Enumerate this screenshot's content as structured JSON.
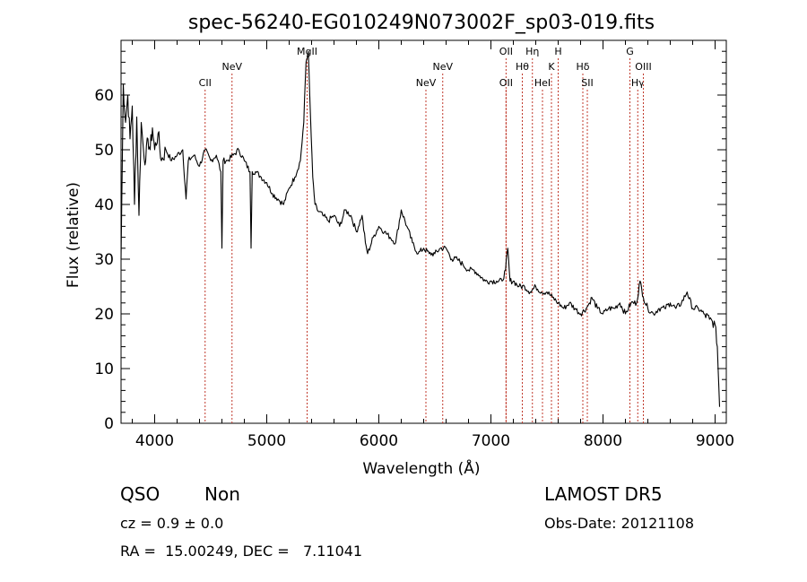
{
  "chart_data": {
    "type": "line",
    "title": "spec-56240-EG010249N073002F_sp03-019.fits",
    "xlabel": "Wavelength (Å)",
    "ylabel": "Flux (relative)",
    "xlim": [
      3700,
      9100
    ],
    "ylim": [
      0,
      70
    ],
    "x_ticks": [
      4000,
      5000,
      6000,
      7000,
      8000,
      9000
    ],
    "y_ticks": [
      0,
      10,
      20,
      30,
      40,
      50,
      60
    ],
    "grid": false,
    "series": [
      {
        "x": [
          3700,
          3720,
          3740,
          3760,
          3780,
          3800,
          3820,
          3840,
          3860,
          3880,
          3900,
          3920,
          3940,
          3960,
          3980,
          4000,
          4030,
          4060,
          4100,
          4150,
          4200,
          4250,
          4280,
          4300,
          4350,
          4400,
          4450,
          4500,
          4550,
          4590,
          4600,
          4610,
          4650,
          4700,
          4750,
          4800,
          4850,
          4860,
          4870,
          4900,
          4950,
          5000,
          5050,
          5100,
          5150,
          5200,
          5250,
          5300,
          5330,
          5350,
          5370,
          5390,
          5410,
          5430,
          5450,
          5500,
          5550,
          5600,
          5650,
          5700,
          5750,
          5800,
          5850,
          5880,
          5900,
          5950,
          6000,
          6050,
          6100,
          6150,
          6200,
          6250,
          6300,
          6350,
          6400,
          6450,
          6500,
          6550,
          6600,
          6650,
          6700,
          6750,
          6800,
          6850,
          6900,
          6950,
          7000,
          7050,
          7100,
          7130,
          7150,
          7170,
          7200,
          7250,
          7300,
          7350,
          7400,
          7450,
          7500,
          7550,
          7600,
          7650,
          7700,
          7750,
          7800,
          7850,
          7880,
          7900,
          7950,
          8000,
          8050,
          8100,
          8150,
          8200,
          8250,
          8300,
          8330,
          8360,
          8400,
          8450,
          8500,
          8550,
          8600,
          8650,
          8700,
          8750,
          8800,
          8850,
          8900,
          8950,
          9000,
          9020,
          9040
        ],
        "y": [
          30,
          62,
          55,
          60,
          52,
          58,
          40,
          56,
          38,
          55,
          50,
          48,
          52,
          50,
          54,
          50,
          53,
          48,
          50,
          48,
          49,
          50,
          41,
          48,
          49,
          47,
          50,
          48,
          49,
          46,
          32,
          48,
          48,
          49,
          50,
          48,
          46,
          32,
          46,
          46,
          45,
          44,
          42,
          41,
          40,
          43,
          45,
          48,
          55,
          66,
          68,
          56,
          45,
          40,
          39,
          38,
          37,
          38,
          36,
          39,
          38,
          35,
          38,
          33,
          31,
          34,
          36,
          35,
          34,
          33,
          39,
          36,
          33,
          31,
          32,
          31,
          31,
          32,
          32,
          30,
          30,
          29,
          28,
          28,
          27,
          26,
          26,
          26,
          26,
          28,
          32,
          26,
          26,
          25,
          25,
          24,
          25,
          24,
          24,
          23,
          22,
          21,
          22,
          21,
          20,
          21,
          22,
          23,
          21,
          20,
          21,
          21,
          22,
          20,
          22,
          22,
          26,
          23,
          21,
          20,
          21,
          21,
          22,
          21,
          22,
          24,
          21,
          21,
          20,
          19,
          18,
          14,
          3
        ],
        "note": ""
      }
    ],
    "line_markers": [
      {
        "label": "CII",
        "x": 4450,
        "row": 3
      },
      {
        "label": "NeV",
        "x": 4690,
        "row": 2
      },
      {
        "label": "MgII",
        "x": 5360,
        "row": 1
      },
      {
        "label": "NeV",
        "x": 6420,
        "row": 3
      },
      {
        "label": "NeV",
        "x": 6570,
        "row": 2
      },
      {
        "label": "OII",
        "x": 7135,
        "row": 1
      },
      {
        "label": "OII",
        "x": 7135,
        "row": 3
      },
      {
        "label": "Hθ",
        "x": 7280,
        "row": 2
      },
      {
        "label": "Hη",
        "x": 7370,
        "row": 1
      },
      {
        "label": "HeI",
        "x": 7460,
        "row": 3
      },
      {
        "label": "K",
        "x": 7540,
        "row": 2
      },
      {
        "label": "H",
        "x": 7600,
        "row": 1
      },
      {
        "label": "Hδ",
        "x": 7820,
        "row": 2
      },
      {
        "label": "SII",
        "x": 7860,
        "row": 3
      },
      {
        "label": "G",
        "x": 8240,
        "row": 1
      },
      {
        "label": "Hγ",
        "x": 8310,
        "row": 3
      },
      {
        "label": "OIII",
        "x": 8360,
        "row": 2
      }
    ]
  },
  "footer": {
    "class_label": "QSO",
    "subclass_label": "Non",
    "cz_line": "cz = 0.9 ± 0.0",
    "radec_line": "RA =  15.00249, DEC =   7.11041",
    "survey": "LAMOST DR5",
    "obs_date": "Obs-Date: 20121108"
  }
}
